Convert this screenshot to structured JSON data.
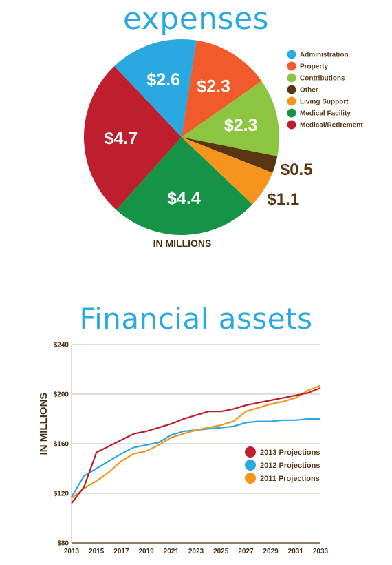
{
  "expenses_title": "expenses",
  "financial_title": "Financial assets",
  "chart_data": [
    {
      "type": "pie",
      "title": "expenses",
      "unit_label": "IN MILLIONS",
      "legend_position": "right",
      "slices": [
        {
          "label": "Administration",
          "value": 2.6,
          "display": "$2.6",
          "color": "#29a9e0"
        },
        {
          "label": "Property",
          "value": 2.3,
          "display": "$2.3",
          "color": "#f15a2b"
        },
        {
          "label": "Contributions",
          "value": 2.3,
          "display": "$2.3",
          "color": "#8cc540"
        },
        {
          "label": "Other",
          "value": 0.5,
          "display": "$0.5",
          "color": "#5a3511"
        },
        {
          "label": "Living Support",
          "value": 1.1,
          "display": "$1.1",
          "color": "#f7941e"
        },
        {
          "label": "Medical Facility",
          "value": 4.4,
          "display": "$4.4",
          "color": "#159447"
        },
        {
          "label": "Medical/Retirement",
          "value": 4.7,
          "display": "$4.7",
          "color": "#be1e2d"
        }
      ]
    },
    {
      "type": "line",
      "title": "Financial assets",
      "ylabel": "IN MILLIONS",
      "xlim": [
        2013,
        2033
      ],
      "ylim": [
        80,
        240
      ],
      "x_ticks": [
        "2013",
        "2015",
        "2017",
        "2019",
        "2021",
        "2023",
        "2025",
        "2027",
        "2029",
        "2031",
        "2033"
      ],
      "y_ticks": [
        "$240",
        "$200",
        "$160",
        "$120",
        "$80"
      ],
      "grid": true,
      "legend_position": "right",
      "x": [
        2013,
        2014,
        2015,
        2016,
        2017,
        2018,
        2019,
        2020,
        2021,
        2022,
        2023,
        2024,
        2025,
        2026,
        2027,
        2028,
        2029,
        2030,
        2031,
        2032,
        2033
      ],
      "series": [
        {
          "name": "2013 Projections",
          "color": "#be1e2d",
          "values": [
            112,
            125,
            153,
            158,
            163,
            168,
            170,
            173,
            176,
            180,
            183,
            186,
            186,
            188,
            191,
            193,
            195,
            197,
            199,
            201,
            205
          ]
        },
        {
          "name": "2012 Projections",
          "color": "#29a9e0",
          "values": [
            117,
            134,
            140,
            146,
            152,
            157,
            159,
            161,
            167,
            170,
            171,
            172,
            173,
            174,
            177,
            178,
            178,
            179,
            179,
            180,
            180
          ]
        },
        {
          "name": "2011 Projections",
          "color": "#f7941e",
          "values": [
            116,
            124,
            130,
            137,
            146,
            152,
            154,
            159,
            165,
            168,
            171,
            173,
            175,
            178,
            186,
            189,
            192,
            194,
            197,
            203,
            207
          ]
        }
      ]
    }
  ]
}
